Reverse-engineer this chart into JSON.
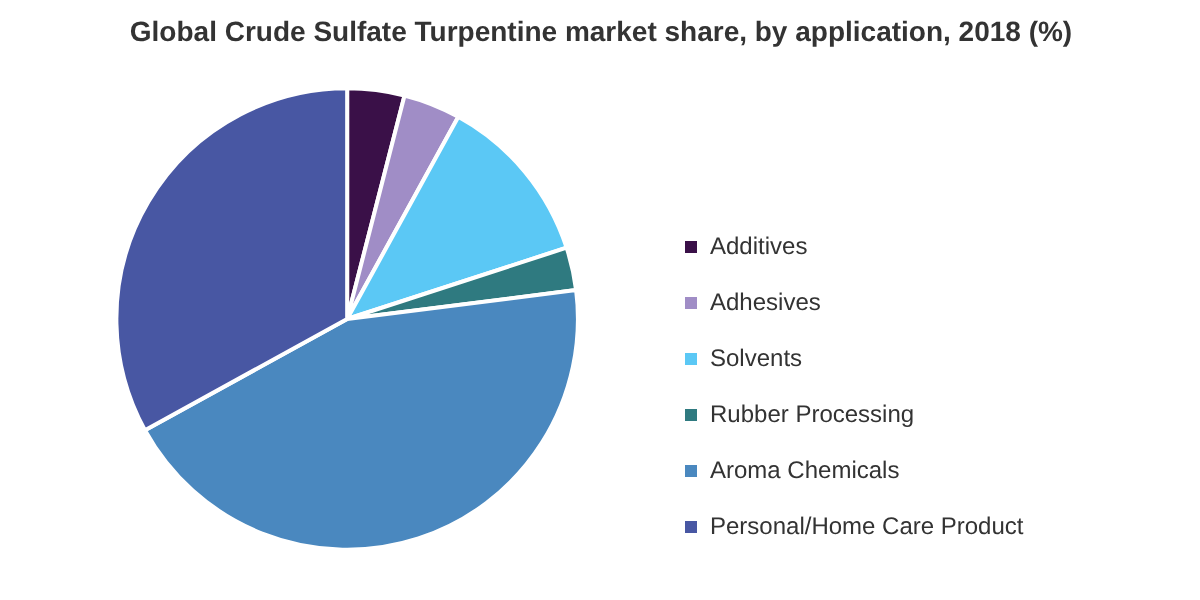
{
  "chart_data": {
    "type": "pie",
    "title": "Global Crude Sulfate Turpentine market share, by application, 2018 (%)",
    "categories": [
      "Additives",
      "Adhesives",
      "Solvents",
      "Rubber Processing",
      "Aroma Chemicals",
      "Personal/Home Care Product"
    ],
    "values": [
      4,
      4,
      12,
      3,
      44,
      33
    ],
    "colors": [
      "#3a1048",
      "#a08dc6",
      "#5bc8f5",
      "#2f7a80",
      "#4a88bf",
      "#4857a3"
    ],
    "legend": "right"
  }
}
